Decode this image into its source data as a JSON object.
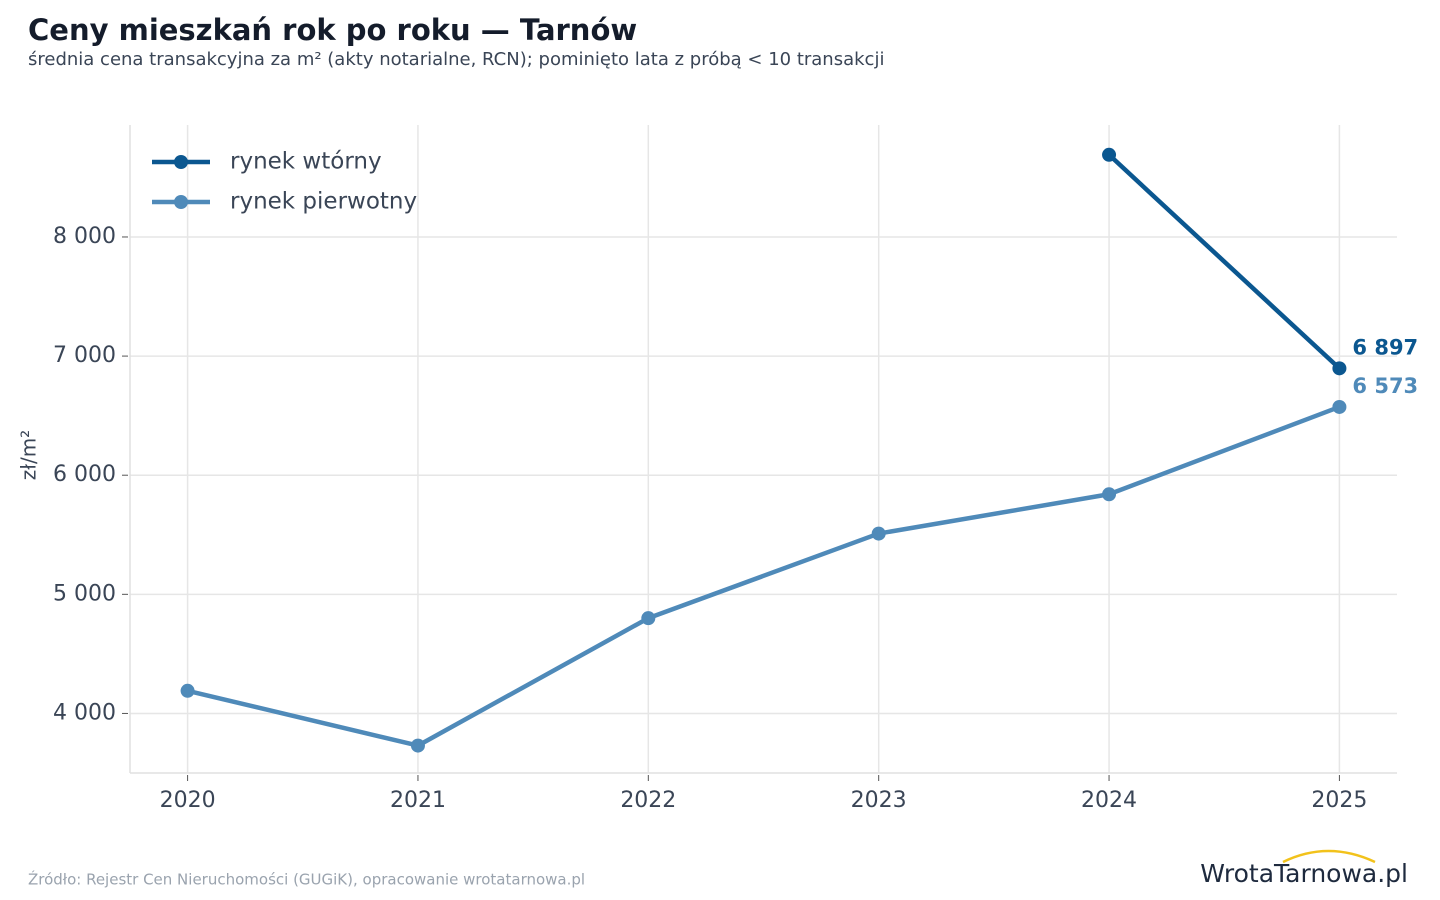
{
  "chart_data": {
    "type": "line",
    "title": "Ceny mieszkań rok po roku — Tarnów",
    "subtitle": "średnia cena transakcyjna za m² (akty notarialne, RCN); pominięto lata z próbą < 10 transakcji",
    "y_label": "zł/m²",
    "x": [
      2020,
      2021,
      2022,
      2023,
      2024,
      2025
    ],
    "series": [
      {
        "name": "rynek wtórny",
        "color": "#0b5790",
        "values": [
          null,
          null,
          null,
          null,
          8690,
          6897
        ],
        "value_labels": [
          null,
          null,
          null,
          null,
          null,
          "6 897"
        ]
      },
      {
        "name": "rynek pierwotny",
        "color": "#4f8ab9",
        "values": [
          4190,
          3730,
          4800,
          5510,
          5840,
          6573
        ],
        "value_labels": [
          null,
          null,
          null,
          null,
          null,
          "6 573"
        ]
      }
    ],
    "xlim": [
      2019.75,
      2025.25
    ],
    "xticks": [
      2020,
      2021,
      2022,
      2023,
      2024,
      2025
    ],
    "ylim": [
      3500,
      8940
    ],
    "yticks": [
      {
        "value": 4000,
        "label": "4 000"
      },
      {
        "value": 5000,
        "label": "5 000"
      },
      {
        "value": 6000,
        "label": "6 000"
      },
      {
        "value": 7000,
        "label": "7 000"
      },
      {
        "value": 8000,
        "label": "8 000"
      }
    ],
    "grid": true,
    "legend": "upper-left",
    "source": "Źródło: Rejestr Cen Nieruchomości (GUGiK), opracowanie wrotatarnowa.pl",
    "logo": {
      "part1": "Wrota",
      "part2": "Tarnowa",
      "part3": ".pl"
    }
  }
}
